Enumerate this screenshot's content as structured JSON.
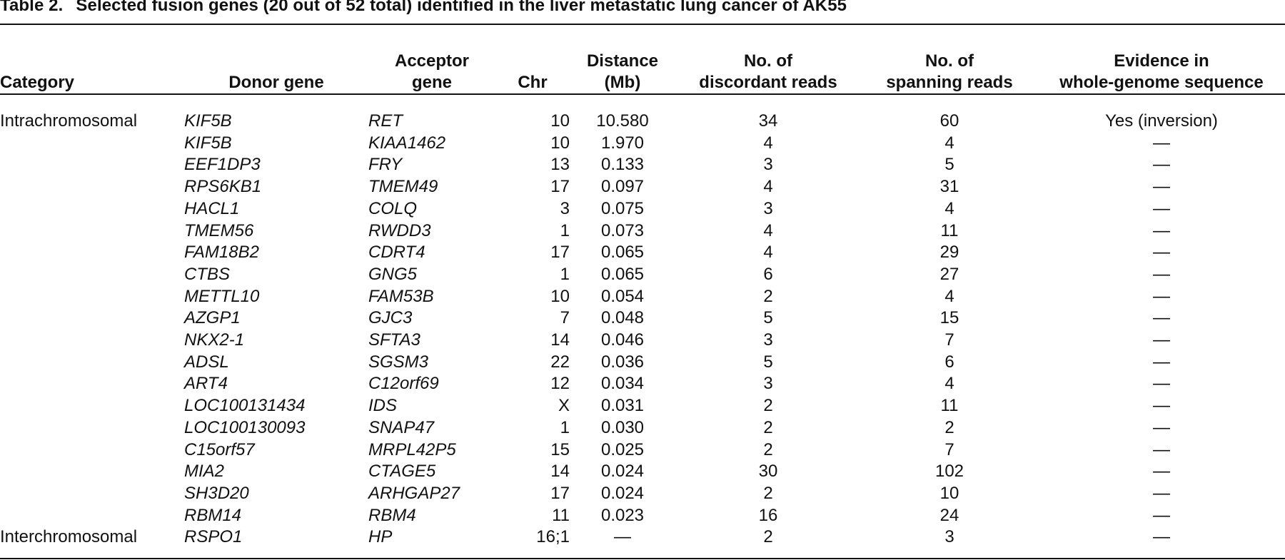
{
  "caption": {
    "label": "Table 2.",
    "text": "Selected fusion genes (20 out of 52 total) identified in the liver metastatic lung cancer of AK55"
  },
  "headers": {
    "category": "Category",
    "donor": "Donor gene",
    "acceptor_line1": "Acceptor",
    "acceptor_line2": "gene",
    "chr": "Chr",
    "distance_line1": "Distance",
    "distance_line2": "(Mb)",
    "discordant_line1": "No. of",
    "discordant_line2": "discordant reads",
    "spanning_line1": "No. of",
    "spanning_line2": "spanning reads",
    "evidence_line1": "Evidence in",
    "evidence_line2": "whole-genome sequence"
  },
  "rows": [
    {
      "category": "Intrachromosomal",
      "donor": "KIF5B",
      "acceptor": "RET",
      "chr": "10",
      "distance": "10.580",
      "discordant": "34",
      "spanning": "60",
      "evidence": "Yes (inversion)"
    },
    {
      "category": "",
      "donor": "KIF5B",
      "acceptor": "KIAA1462",
      "chr": "10",
      "distance": "1.970",
      "discordant": "4",
      "spanning": "4",
      "evidence": "—"
    },
    {
      "category": "",
      "donor": "EEF1DP3",
      "acceptor": "FRY",
      "chr": "13",
      "distance": "0.133",
      "discordant": "3",
      "spanning": "5",
      "evidence": "—"
    },
    {
      "category": "",
      "donor": "RPS6KB1",
      "acceptor": "TMEM49",
      "chr": "17",
      "distance": "0.097",
      "discordant": "4",
      "spanning": "31",
      "evidence": "—"
    },
    {
      "category": "",
      "donor": "HACL1",
      "acceptor": "COLQ",
      "chr": "3",
      "distance": "0.075",
      "discordant": "3",
      "spanning": "4",
      "evidence": "—"
    },
    {
      "category": "",
      "donor": "TMEM56",
      "acceptor": "RWDD3",
      "chr": "1",
      "distance": "0.073",
      "discordant": "4",
      "spanning": "11",
      "evidence": "—"
    },
    {
      "category": "",
      "donor": "FAM18B2",
      "acceptor": "CDRT4",
      "chr": "17",
      "distance": "0.065",
      "discordant": "4",
      "spanning": "29",
      "evidence": "—"
    },
    {
      "category": "",
      "donor": "CTBS",
      "acceptor": "GNG5",
      "chr": "1",
      "distance": "0.065",
      "discordant": "6",
      "spanning": "27",
      "evidence": "—"
    },
    {
      "category": "",
      "donor": "METTL10",
      "acceptor": "FAM53B",
      "chr": "10",
      "distance": "0.054",
      "discordant": "2",
      "spanning": "4",
      "evidence": "—"
    },
    {
      "category": "",
      "donor": "AZGP1",
      "acceptor": "GJC3",
      "chr": "7",
      "distance": "0.048",
      "discordant": "5",
      "spanning": "15",
      "evidence": "—"
    },
    {
      "category": "",
      "donor": "NKX2-1",
      "acceptor": "SFTA3",
      "chr": "14",
      "distance": "0.046",
      "discordant": "3",
      "spanning": "7",
      "evidence": "—"
    },
    {
      "category": "",
      "donor": "ADSL",
      "acceptor": "SGSM3",
      "chr": "22",
      "distance": "0.036",
      "discordant": "5",
      "spanning": "6",
      "evidence": "—"
    },
    {
      "category": "",
      "donor": "ART4",
      "acceptor": "C12orf69",
      "chr": "12",
      "distance": "0.034",
      "discordant": "3",
      "spanning": "4",
      "evidence": "—"
    },
    {
      "category": "",
      "donor": "LOC100131434",
      "acceptor": "IDS",
      "chr": "X",
      "distance": "0.031",
      "discordant": "2",
      "spanning": "11",
      "evidence": "—"
    },
    {
      "category": "",
      "donor": "LOC100130093",
      "acceptor": "SNAP47",
      "chr": "1",
      "distance": "0.030",
      "discordant": "2",
      "spanning": "2",
      "evidence": "—"
    },
    {
      "category": "",
      "donor": "C15orf57",
      "acceptor": "MRPL42P5",
      "chr": "15",
      "distance": "0.025",
      "discordant": "2",
      "spanning": "7",
      "evidence": "—"
    },
    {
      "category": "",
      "donor": "MIA2",
      "acceptor": "CTAGE5",
      "chr": "14",
      "distance": "0.024",
      "discordant": "30",
      "spanning": "102",
      "evidence": "—"
    },
    {
      "category": "",
      "donor": "SH3D20",
      "acceptor": "ARHGAP27",
      "chr": "17",
      "distance": "0.024",
      "discordant": "2",
      "spanning": "10",
      "evidence": "—"
    },
    {
      "category": "",
      "donor": "RBM14",
      "acceptor": "RBM4",
      "chr": "11",
      "distance": "0.023",
      "discordant": "16",
      "spanning": "24",
      "evidence": "—"
    },
    {
      "category": "Interchromosomal",
      "donor": "RSPO1",
      "acceptor": "HP",
      "chr": "16;1",
      "distance": "—",
      "discordant": "2",
      "spanning": "3",
      "evidence": "—"
    }
  ]
}
